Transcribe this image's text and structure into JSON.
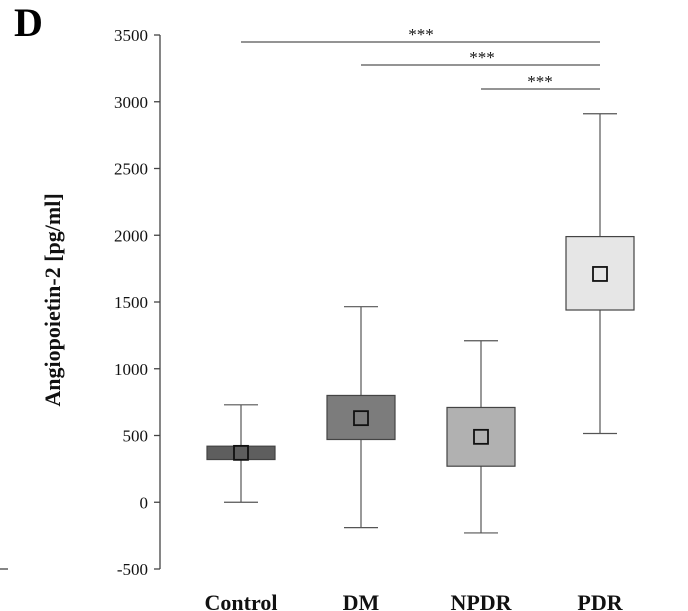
{
  "panel_label": "D",
  "chart_data": {
    "type": "box",
    "title": "",
    "xlabel": "",
    "ylabel": "Angiopoietin-2 [pg/ml]",
    "ylim": [
      -500,
      3500
    ],
    "yticks": [
      3500,
      3000,
      2500,
      2000,
      1500,
      1000,
      500,
      0,
      -500
    ],
    "grid": false,
    "categories": [
      "Control",
      "DM",
      "NPDR",
      "PDR"
    ],
    "boxes": [
      {
        "category": "Control",
        "whisker_low": 0,
        "q1": 320,
        "median": 370,
        "q3": 420,
        "whisker_high": 730,
        "fill": "#5e5e5e"
      },
      {
        "category": "DM",
        "whisker_low": -190,
        "q1": 470,
        "median": 630,
        "q3": 800,
        "whisker_high": 1465,
        "fill": "#7c7c7c"
      },
      {
        "category": "NPDR",
        "whisker_low": -230,
        "q1": 270,
        "median": 490,
        "q3": 710,
        "whisker_high": 1210,
        "fill": "#b1b1b1"
      },
      {
        "category": "PDR",
        "whisker_low": 515,
        "q1": 1440,
        "median": 1710,
        "q3": 1990,
        "whisker_high": 2910,
        "fill": "#e6e6e6"
      }
    ],
    "significance": [
      {
        "from": "Control",
        "to": "PDR",
        "label": "***"
      },
      {
        "from": "DM",
        "to": "PDR",
        "label": "***"
      },
      {
        "from": "NPDR",
        "to": "PDR",
        "label": "***"
      }
    ]
  }
}
